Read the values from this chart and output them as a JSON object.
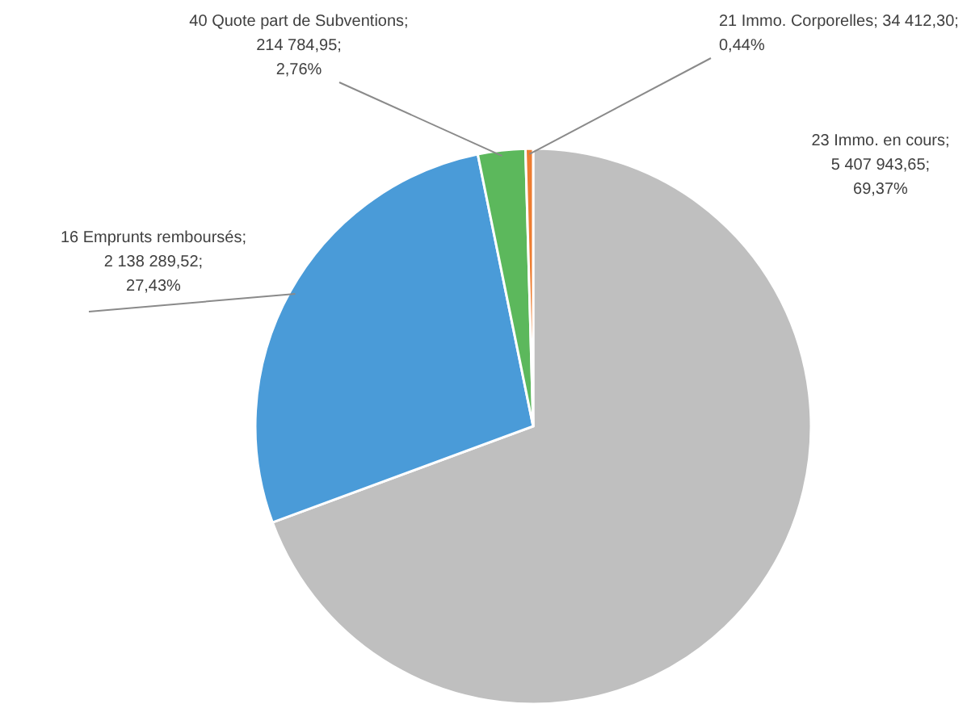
{
  "chart_data": {
    "type": "pie",
    "categories": [
      "23 Immo. en cours",
      "16 Emprunts remboursés",
      "40 Quote part de Subventions",
      "21 Immo. Corporelles"
    ],
    "values": [
      5407943.65,
      2138289.52,
      214784.95,
      34412.3
    ],
    "colors": [
      "#bfbfbf",
      "#4a9bd8",
      "#5cb85c",
      "#ed7d31"
    ],
    "value_labels": [
      ";\n5 407 943,65;\n69,37%",
      ";\n2 138 289,52;\n27,43%",
      ";\n214 784,95;\n2,76%",
      "; 34 412,30;\n0,44%"
    ]
  }
}
